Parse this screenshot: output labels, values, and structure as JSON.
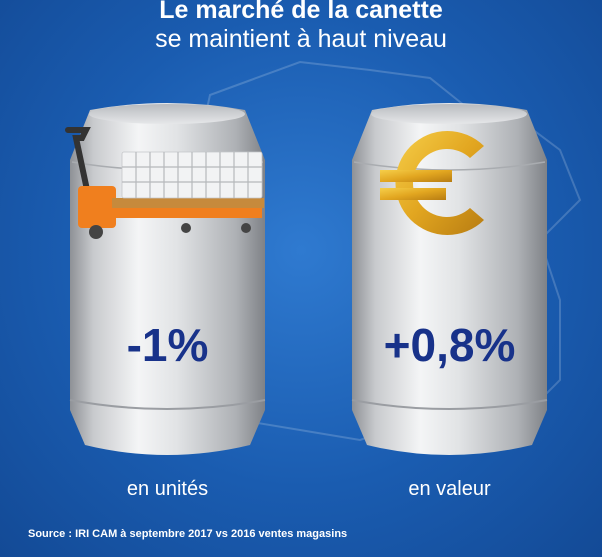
{
  "header": {
    "title": "Le marché de la canette",
    "subtitle": "se maintient à haut niveau"
  },
  "cans": [
    {
      "value": "-1%",
      "label": "en unités",
      "icon": "pallet-truck-icon"
    },
    {
      "value": "+0,8%",
      "label": "en valeur",
      "icon": "euro-icon"
    }
  ],
  "footer": {
    "source": "Source : IRI CAM à septembre 2017 vs 2016 ventes magasins"
  },
  "colors": {
    "background": "#1a5cb0",
    "can_silver": "#d9dadc",
    "value_text": "#18328a",
    "euro_gold": "#e2a620",
    "truck_orange": "#f07f1e"
  }
}
